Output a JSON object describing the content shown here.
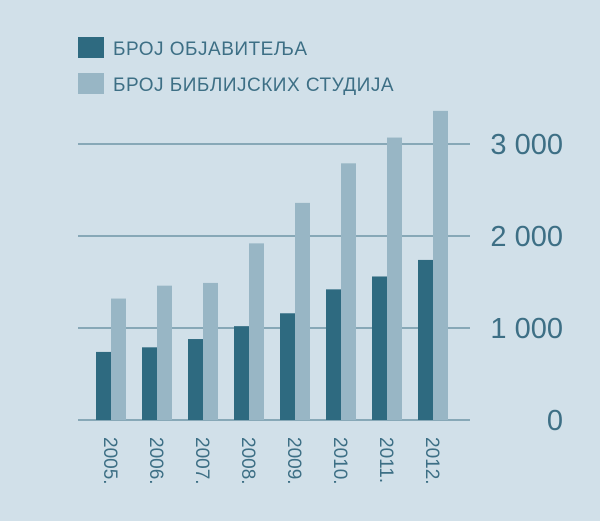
{
  "chart_data": {
    "type": "bar",
    "categories": [
      "2005.",
      "2006.",
      "2007.",
      "2008.",
      "2009.",
      "2010.",
      "2011.",
      "2012."
    ],
    "series": [
      {
        "name": "БРОЈ ОБЈАВИТЕЉА",
        "color": "#2e6a80",
        "values": [
          740,
          790,
          880,
          1020,
          1160,
          1420,
          1560,
          1740
        ]
      },
      {
        "name": "БРОЈ БИБЛИЈСКИХ СТУДИЈА",
        "color": "#98b6c5",
        "values": [
          1320,
          1460,
          1490,
          1920,
          2360,
          2790,
          3070,
          3360
        ]
      }
    ],
    "yticks": [
      {
        "value": 0,
        "label": "0"
      },
      {
        "value": 1000,
        "label": "1 000"
      },
      {
        "value": 2000,
        "label": "2 000"
      },
      {
        "value": 3000,
        "label": "3 000"
      }
    ],
    "ylim": [
      0,
      3000
    ],
    "grid": true,
    "legend": "top-left",
    "title": "",
    "xlabel": "",
    "ylabel": ""
  },
  "colors": {
    "background": "#d1e0e9",
    "gridline": "#3d6f85",
    "text": "#3d6f85"
  }
}
